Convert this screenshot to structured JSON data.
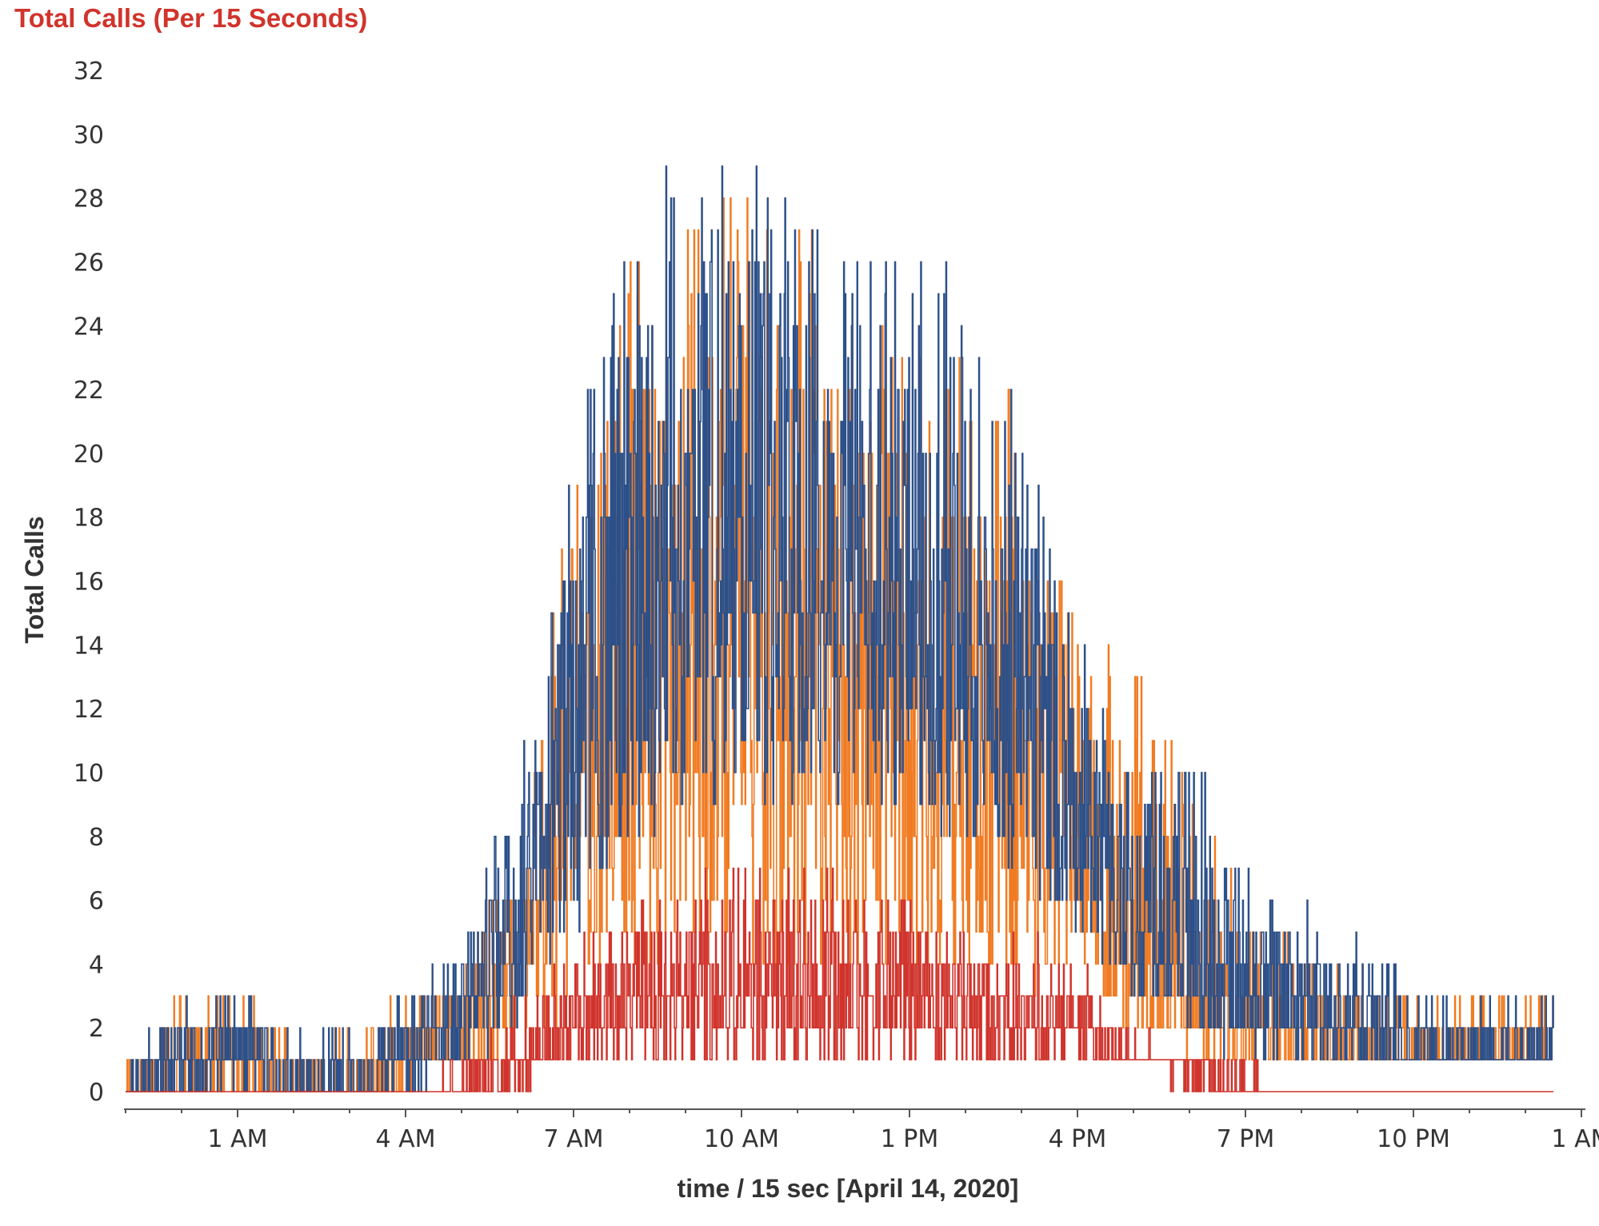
{
  "chart_data": {
    "type": "line",
    "title": "Total Calls (Per 15 Seconds)",
    "xlabel": "time  / 15 sec [April 14, 2020]",
    "ylabel": "Total Calls",
    "x_start": "12:00 AM",
    "x_end": "1:00 AM (next day)",
    "x_ticks": [
      "1 AM",
      "4 AM",
      "7 AM",
      "10 AM",
      "1 PM",
      "4 PM",
      "7 PM",
      "10 PM",
      "1 AM"
    ],
    "y_ticks": [
      0,
      2,
      4,
      6,
      8,
      10,
      12,
      14,
      16,
      18,
      20,
      22,
      24,
      26,
      28,
      30,
      32
    ],
    "ylim": [
      0,
      32
    ],
    "grid": false,
    "legend": "none",
    "colors": {
      "title": "#d0342c",
      "axis": "#555555",
      "text": "#333333"
    },
    "series": [
      {
        "color": "#d0342c",
        "resolution": "hourly approximate envelope of 15-second counts",
        "hours": [
          "12 AM",
          "1 AM",
          "2 AM",
          "3 AM",
          "4 AM",
          "5 AM",
          "6 AM",
          "7 AM",
          "8 AM",
          "9 AM",
          "10 AM",
          "11 AM",
          "12 PM",
          "1 PM",
          "2 PM",
          "3 PM",
          "4 PM",
          "5 PM",
          "6 PM",
          "7 PM",
          "8 PM",
          "9 PM",
          "10 PM",
          "11 PM"
        ],
        "min": [
          0,
          0,
          0,
          0,
          0,
          0,
          0,
          0,
          1,
          1,
          1,
          1,
          1,
          1,
          1,
          1,
          1,
          1,
          1,
          0,
          0,
          0,
          0,
          0
        ],
        "typical": [
          0,
          0,
          0,
          0,
          0,
          0,
          0,
          1,
          2,
          3,
          3,
          3,
          3,
          3,
          3,
          3,
          2,
          2,
          1,
          1,
          0,
          0,
          0,
          0
        ],
        "max": [
          0,
          0,
          0,
          0,
          0,
          0,
          1,
          3,
          5,
          6,
          7,
          7,
          7,
          7,
          6,
          5,
          5,
          4,
          2,
          1,
          1,
          0,
          0,
          0
        ]
      },
      {
        "color": "#f07b22",
        "resolution": "hourly approximate envelope of 15-second counts",
        "hours": [
          "12 AM",
          "1 AM",
          "2 AM",
          "3 AM",
          "4 AM",
          "5 AM",
          "6 AM",
          "7 AM",
          "8 AM",
          "9 AM",
          "10 AM",
          "11 AM",
          "12 PM",
          "1 PM",
          "2 PM",
          "3 PM",
          "4 PM",
          "5 PM",
          "6 PM",
          "7 PM",
          "8 PM",
          "9 PM",
          "10 PM",
          "11 PM"
        ],
        "min": [
          0,
          0,
          0,
          0,
          0,
          0,
          1,
          1,
          3,
          4,
          4,
          4,
          4,
          4,
          4,
          4,
          3,
          3,
          2,
          1,
          1,
          1,
          1,
          1
        ],
        "typical": [
          0,
          1,
          1,
          0,
          0,
          1,
          2,
          4,
          10,
          13,
          14,
          14,
          13,
          13,
          12,
          11,
          10,
          8,
          5,
          3,
          2,
          2,
          1,
          1
        ],
        "max": [
          1,
          3,
          3,
          2,
          2,
          3,
          4,
          8,
          21,
          26,
          28,
          29,
          27,
          26,
          24,
          23,
          22,
          14,
          14,
          10,
          6,
          5,
          4,
          3
        ]
      },
      {
        "color": "#2c5089",
        "resolution": "hourly approximate envelope of 15-second counts",
        "hours": [
          "12 AM",
          "1 AM",
          "2 AM",
          "3 AM",
          "4 AM",
          "5 AM",
          "6 AM",
          "7 AM",
          "8 AM",
          "9 AM",
          "10 AM",
          "11 AM",
          "12 PM",
          "1 PM",
          "2 PM",
          "3 PM",
          "4 PM",
          "5 PM",
          "6 PM",
          "7 PM",
          "8 PM",
          "9 PM",
          "10 PM",
          "11 PM"
        ],
        "min": [
          0,
          0,
          0,
          0,
          0,
          0,
          1,
          2,
          5,
          8,
          9,
          9,
          9,
          9,
          8,
          8,
          7,
          5,
          3,
          2,
          1,
          1,
          1,
          1
        ],
        "typical": [
          0,
          1,
          1,
          0,
          0,
          1,
          2,
          5,
          13,
          16,
          17,
          17,
          16,
          15,
          14,
          13,
          12,
          9,
          6,
          4,
          3,
          2,
          2,
          1
        ],
        "max": [
          1,
          3,
          3,
          2,
          2,
          3,
          5,
          11,
          20,
          29,
          30,
          29,
          28,
          26,
          27,
          25,
          22,
          15,
          10,
          11,
          7,
          6,
          5,
          3
        ]
      }
    ]
  }
}
